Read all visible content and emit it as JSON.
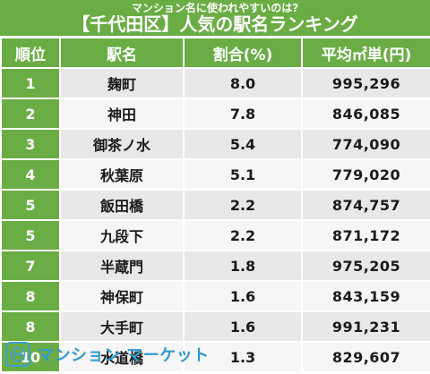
{
  "header": {
    "subtitle": "マンション名に使われやすいのは?",
    "title": "【千代田区】人気の駅名ランキング"
  },
  "table": {
    "columns": [
      "順位",
      "駅名",
      "割合(%)",
      "平均㎡単(円)"
    ],
    "rows": [
      {
        "rank": "1",
        "station": "麹町",
        "share": "8.0",
        "avg": "995,296"
      },
      {
        "rank": "2",
        "station": "神田",
        "share": "7.8",
        "avg": "846,085"
      },
      {
        "rank": "3",
        "station": "御茶ノ水",
        "share": "5.4",
        "avg": "774,090"
      },
      {
        "rank": "4",
        "station": "秋葉原",
        "share": "5.1",
        "avg": "779,020"
      },
      {
        "rank": "5",
        "station": "飯田橋",
        "share": "2.2",
        "avg": "874,757"
      },
      {
        "rank": "5",
        "station": "九段下",
        "share": "2.2",
        "avg": "871,172"
      },
      {
        "rank": "7",
        "station": "半蔵門",
        "share": "1.8",
        "avg": "975,205"
      },
      {
        "rank": "8",
        "station": "神保町",
        "share": "1.6",
        "avg": "843,159"
      },
      {
        "rank": "8",
        "station": "大手町",
        "share": "1.6",
        "avg": "991,231"
      },
      {
        "rank": "10",
        "station": "水道橋",
        "share": "1.3",
        "avg": "829,607"
      }
    ]
  },
  "footer": {
    "brand": "マンション マーケット",
    "logo_icon": "building-logo-icon"
  },
  "colors": {
    "header_green": "#6aad45",
    "brand_blue": "#2d9ad3"
  }
}
